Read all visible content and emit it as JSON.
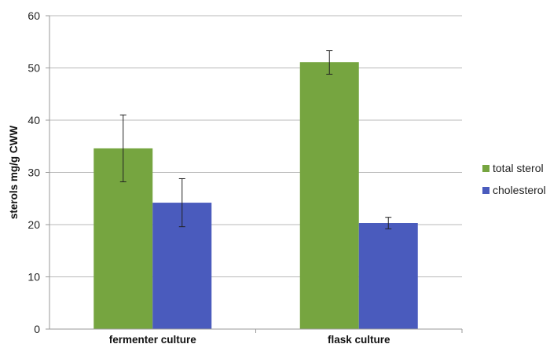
{
  "chart_data": {
    "type": "bar",
    "ylabel": "sterols mg/g CWW",
    "xlabel": "",
    "ylim": [
      0,
      60
    ],
    "yticks": [
      0,
      10,
      20,
      30,
      40,
      50,
      60
    ],
    "grid": true,
    "legend_position": "right",
    "categories": [
      "fermenter culture",
      "flask culture"
    ],
    "series": [
      {
        "name": "total sterol",
        "color": "#76a540",
        "values": [
          34.6,
          51.1
        ],
        "error_low": [
          28.2,
          48.8
        ],
        "error_high": [
          41.0,
          53.3
        ]
      },
      {
        "name": "cholesterol",
        "color": "#4a5bbd",
        "values": [
          24.2,
          20.3
        ],
        "error_low": [
          19.6,
          19.2
        ],
        "error_high": [
          28.8,
          21.4
        ]
      }
    ]
  }
}
